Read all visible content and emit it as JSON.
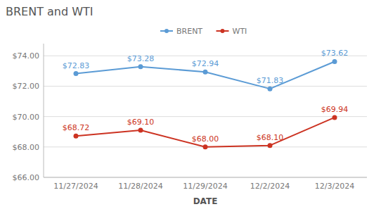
{
  "chart_data": {
    "type": "line",
    "title": "BRENT and WTI",
    "x_label": "DATE",
    "categories": [
      "11/27/2024",
      "11/28/2024",
      "11/29/2024",
      "12/2/2024",
      "12/3/2024"
    ],
    "series": [
      {
        "name": "BRENT",
        "color": "#5b9bd5",
        "marker": "circle",
        "values": [
          72.83,
          73.28,
          72.94,
          71.83,
          73.62
        ],
        "value_labels": [
          "$72.83",
          "$73.28",
          "$72.94",
          "$71.83",
          "$73.62"
        ]
      },
      {
        "name": "WTI",
        "color": "#cc3322",
        "marker": "circle",
        "values": [
          68.72,
          69.1,
          68.0,
          68.1,
          69.94
        ],
        "value_labels": [
          "$68.72",
          "$69.10",
          "$68.00",
          "$68.10",
          "$69.94"
        ]
      }
    ],
    "ylim": [
      66.0,
      74.8
    ],
    "yticks": [
      {
        "value": 66.0,
        "label": "$66.00"
      },
      {
        "value": 68.0,
        "label": "$68.00"
      },
      {
        "value": 70.0,
        "label": "$70.00"
      },
      {
        "value": 72.0,
        "label": "$72.00"
      },
      {
        "value": 74.0,
        "label": "$74.00"
      }
    ],
    "grid": true,
    "legend": "top",
    "data_labels": true
  }
}
